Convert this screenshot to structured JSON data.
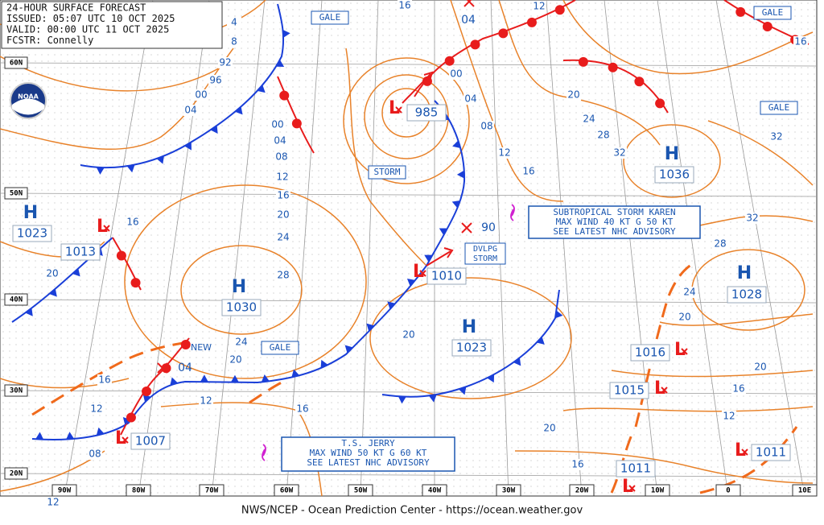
{
  "header": {
    "lines": [
      "24-HOUR SURFACE FORECAST",
      "ISSUED: 05:07 UTC 10 OCT 2025",
      "VALID: 00:00 UTC 11 OCT 2025",
      "FCSTR: Connelly"
    ]
  },
  "logo": "NOAA",
  "latitude_labels": [
    "60N",
    "50N",
    "40N",
    "30N",
    "20N"
  ],
  "longitude_labels": [
    "90W",
    "80W",
    "70W",
    "60W",
    "50W",
    "40W",
    "30W",
    "20W",
    "10W",
    "0",
    "10E"
  ],
  "pressure_centers": [
    {
      "symbol": "H",
      "pressure": "1023"
    },
    {
      "symbol": "L",
      "pressure": "1013"
    },
    {
      "symbol": "H",
      "pressure": "1030"
    },
    {
      "symbol": "L",
      "pressure": "985"
    },
    {
      "symbol": "L",
      "pressure": "1010"
    },
    {
      "symbol": "H",
      "pressure": "1023"
    },
    {
      "symbol": "H",
      "pressure": "1036"
    },
    {
      "symbol": "H",
      "pressure": "1028"
    },
    {
      "symbol": "L",
      "pressure": "1016"
    },
    {
      "symbol": "L",
      "pressure": "1015"
    },
    {
      "symbol": "L",
      "pressure": "1007"
    },
    {
      "symbol": "L",
      "pressure": "1011"
    },
    {
      "symbol": "L",
      "pressure": "1011"
    }
  ],
  "forecast_positions": [
    {
      "pressure": "90"
    },
    {
      "pressure": "04"
    },
    {
      "pressure": "04"
    }
  ],
  "warnings": [
    "GALE",
    "GALE",
    "GALE",
    "STORM",
    "GALE"
  ],
  "developing": {
    "lines": [
      "DVLPG",
      "STORM"
    ]
  },
  "new_label": "NEW",
  "advisories": [
    {
      "lines": [
        "SUBTROPICAL STORM KAREN",
        "MAX WIND 40 KT G 50 KT",
        "SEE LATEST NHC ADVISORY"
      ]
    },
    {
      "lines": [
        "T.S. JERRY",
        "MAX WIND 50 KT G 60 KT",
        "SEE LATEST NHC ADVISORY"
      ]
    }
  ],
  "isobar_labels": [
    "4",
    "8",
    "92",
    "96",
    "00",
    "04",
    "00",
    "04",
    "08",
    "12",
    "16",
    "20",
    "24",
    "28",
    "16",
    "20",
    "16",
    "12",
    "00",
    "04",
    "08",
    "12",
    "16",
    "20",
    "24",
    "28",
    "32",
    "32",
    "16",
    "32",
    "28",
    "24",
    "20",
    "20",
    "16",
    "12",
    "20",
    "24",
    "20",
    "16",
    "12",
    "12",
    "16",
    "20",
    "16",
    "08",
    "12"
  ],
  "footer": "NWS/NCEP - Ocean Prediction Center - https://ocean.weather.gov"
}
